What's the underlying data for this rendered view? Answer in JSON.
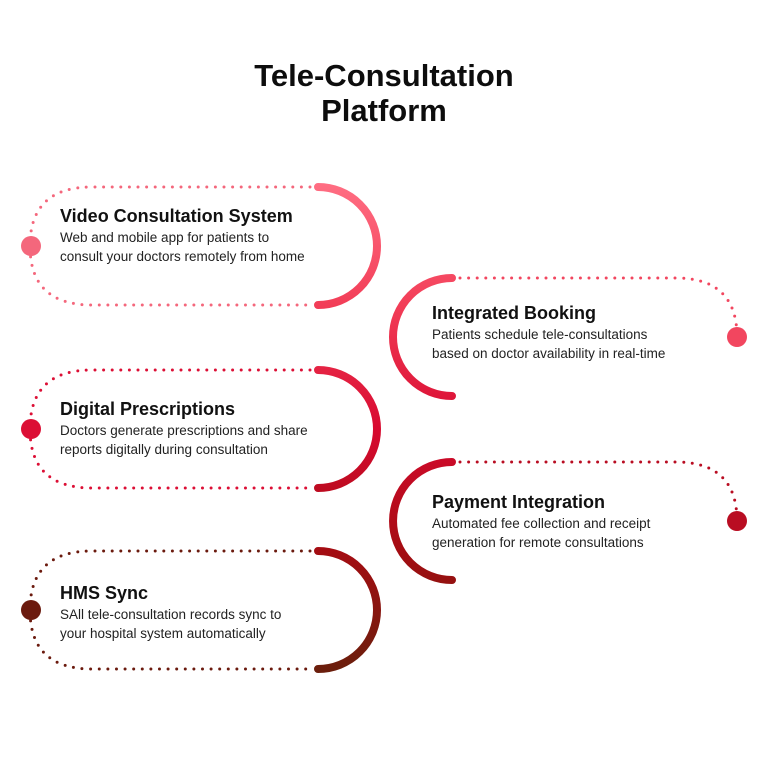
{
  "title": {
    "line1": "Tele-Consultation",
    "line2": "Platform"
  },
  "items": [
    {
      "title": "Video Consultation System",
      "desc1": "Web and mobile app for patients to",
      "desc2": "consult your doctors remotely from home",
      "side": "left",
      "color": "#f4677c"
    },
    {
      "title": "Integrated Booking",
      "desc1": "Patients schedule tele-consultations",
      "desc2": "based on doctor availability in real-time",
      "side": "right",
      "color": "#f2465f"
    },
    {
      "title": "Digital Prescriptions",
      "desc1": "Doctors generate prescriptions and share",
      "desc2": "reports digitally during consultation",
      "side": "left",
      "color": "#dc0f35"
    },
    {
      "title": "Payment Integration",
      "desc1": "Automated fee collection and receipt",
      "desc2": "generation for remote consultations",
      "side": "right",
      "color": "#b90d22"
    },
    {
      "title": "HMS Sync",
      "desc1": "SAll tele-consultation records sync to",
      "desc2": "your hospital system automatically",
      "side": "left",
      "color": "#6b1a0e"
    }
  ],
  "gradient": [
    "#ff6d82",
    "#f23d57",
    "#d80a30",
    "#a50c12",
    "#6b1e0c"
  ]
}
